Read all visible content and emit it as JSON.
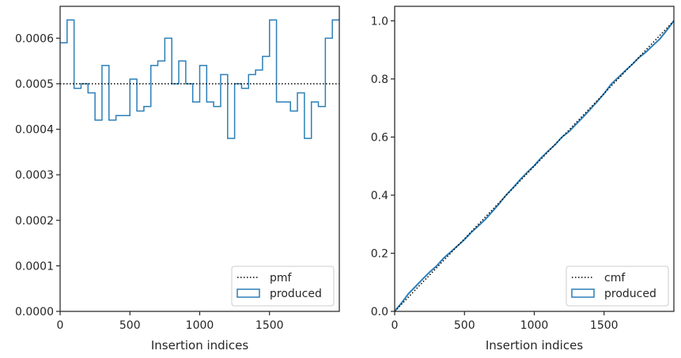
{
  "chart_data": [
    {
      "type": "histogram-step",
      "xlabel": "Insertion indices",
      "ylabel": "",
      "xlim": [
        0,
        2000
      ],
      "ylim": [
        0,
        0.00067
      ],
      "xticks": [
        0,
        500,
        1000,
        1500
      ],
      "xtick_labels": [
        "0",
        "500",
        "1000",
        "1500"
      ],
      "yticks": [
        0,
        0.0001,
        0.0002,
        0.0003,
        0.0004,
        0.0005,
        0.0006
      ],
      "ytick_labels": [
        "0.0000",
        "0.0001",
        "0.0002",
        "0.0003",
        "0.0004",
        "0.0005",
        "0.0006"
      ],
      "legend_position": "lower-right",
      "legend": [
        {
          "name": "pmf",
          "style": "dotted-line",
          "color": "#000000"
        },
        {
          "name": "produced",
          "style": "step",
          "color": "#2c7fb8"
        }
      ],
      "pmf": {
        "name": "pmf",
        "value": 0.0005
      },
      "histogram": {
        "name": "produced",
        "color": "#2c7fb8",
        "bin_width": 50,
        "bin_edges_start": 0,
        "values": [
          0.00059,
          0.00064,
          0.00049,
          0.0005,
          0.00048,
          0.00042,
          0.00054,
          0.00042,
          0.00043,
          0.00043,
          0.00051,
          0.00044,
          0.00045,
          0.00054,
          0.00055,
          0.0006,
          0.0005,
          0.00055,
          0.0005,
          0.00046,
          0.00054,
          0.00046,
          0.00045,
          0.00052,
          0.00038,
          0.0005,
          0.00049,
          0.00052,
          0.00053,
          0.00056,
          0.00064,
          0.00046,
          0.00046,
          0.00044,
          0.00048,
          0.00038,
          0.00046,
          0.00045,
          0.0006,
          0.00064
        ]
      }
    },
    {
      "type": "cumulative-step",
      "xlabel": "Insertion indices",
      "ylabel": "",
      "xlim": [
        0,
        2000
      ],
      "ylim": [
        0,
        1.05
      ],
      "xticks": [
        0,
        500,
        1000,
        1500
      ],
      "xtick_labels": [
        "0",
        "500",
        "1000",
        "1500"
      ],
      "yticks": [
        0,
        0.2,
        0.4,
        0.6,
        0.8,
        1.0
      ],
      "ytick_labels": [
        "0.0",
        "0.2",
        "0.4",
        "0.6",
        "0.8",
        "1.0"
      ],
      "legend_position": "lower-right",
      "legend": [
        {
          "name": "cmf",
          "style": "dotted-line",
          "color": "#000000"
        },
        {
          "name": "produced",
          "style": "step",
          "color": "#2c7fb8"
        }
      ],
      "cmf": {
        "name": "cmf",
        "x": [
          0,
          2000
        ],
        "y": [
          0,
          1.0
        ]
      },
      "produced": {
        "name": "produced",
        "color": "#2c7fb8",
        "x": [
          0,
          50,
          100,
          150,
          200,
          250,
          300,
          350,
          400,
          450,
          500,
          550,
          600,
          650,
          700,
          750,
          800,
          850,
          900,
          950,
          1000,
          1050,
          1100,
          1150,
          1200,
          1250,
          1300,
          1350,
          1400,
          1450,
          1500,
          1550,
          1600,
          1650,
          1700,
          1750,
          1800,
          1850,
          1900,
          1950,
          2000
        ],
        "y": [
          0,
          0.0295,
          0.0615,
          0.086,
          0.111,
          0.135,
          0.156,
          0.183,
          0.204,
          0.2255,
          0.247,
          0.2725,
          0.2945,
          0.317,
          0.344,
          0.3715,
          0.4015,
          0.4265,
          0.454,
          0.479,
          0.502,
          0.529,
          0.552,
          0.5745,
          0.6005,
          0.6195,
          0.6445,
          0.669,
          0.695,
          0.7215,
          0.7495,
          0.7815,
          0.8045,
          0.8275,
          0.8495,
          0.8735,
          0.8925,
          0.9155,
          0.938,
          0.968,
          1.0
        ]
      }
    }
  ]
}
